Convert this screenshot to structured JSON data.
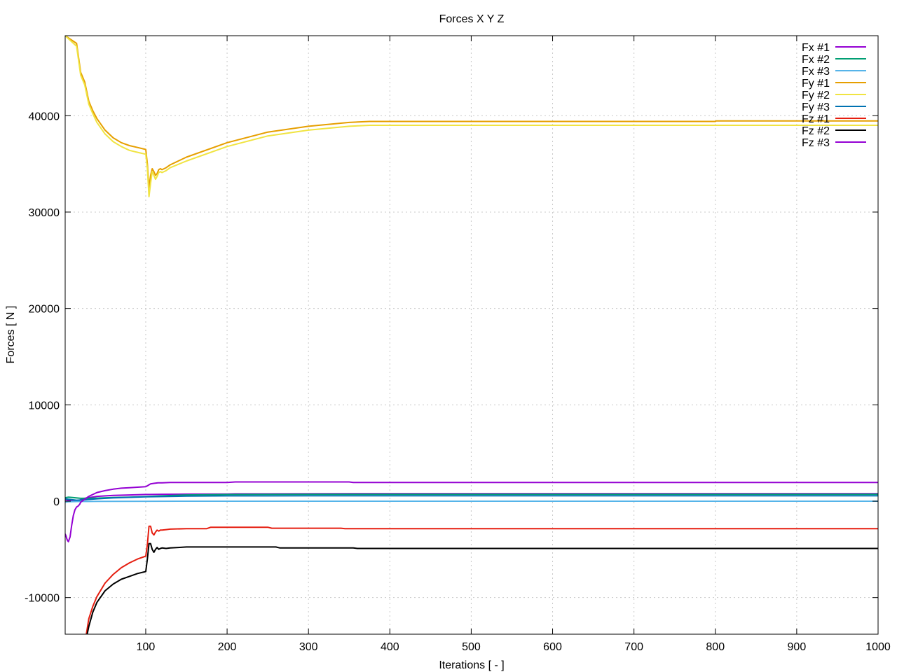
{
  "chart_data": {
    "type": "line",
    "title": "Forces X Y Z",
    "xlabel": "Iterations [ - ]",
    "ylabel": "Forces [ N ]",
    "xlim": [
      1,
      1000
    ],
    "ylim": [
      -13800,
      48300
    ],
    "xticks": [
      100,
      200,
      300,
      400,
      500,
      600,
      700,
      800,
      900,
      1000
    ],
    "yticks": [
      -10000,
      0,
      10000,
      20000,
      30000,
      40000
    ],
    "grid": true,
    "legend_position": "top-right",
    "series": [
      {
        "name": "Fx #1",
        "color": "#9400d3",
        "x": [
          1,
          5,
          15,
          25,
          40,
          60,
          80,
          100,
          105,
          120,
          150,
          200,
          210,
          300,
          358,
          360,
          500,
          800,
          1000
        ],
        "y": [
          150,
          100,
          0,
          300,
          500,
          600,
          650,
          700,
          700,
          720,
          730,
          750,
          760,
          770,
          780,
          780,
          780,
          780,
          780
        ]
      },
      {
        "name": "Fx #2",
        "color": "#009e73",
        "x": [
          1,
          5,
          10,
          20,
          40,
          60,
          80,
          100,
          120,
          150,
          200,
          250,
          300,
          400,
          500,
          800,
          1000
        ],
        "y": [
          350,
          420,
          380,
          300,
          320,
          380,
          420,
          480,
          550,
          650,
          700,
          710,
          720,
          720,
          720,
          720,
          720
        ]
      },
      {
        "name": "Fx #3",
        "color": "#56b4e9",
        "x": [
          1,
          5,
          10,
          20,
          40,
          100,
          200,
          500,
          1000
        ],
        "y": [
          -100,
          -50,
          -40,
          -30,
          -20,
          -10,
          0,
          0,
          0
        ]
      },
      {
        "name": "Fy #1",
        "color": "#e69f00",
        "x": [
          1,
          15,
          20,
          25,
          30,
          35,
          40,
          50,
          60,
          70,
          80,
          90,
          100,
          102,
          104,
          106,
          108,
          110,
          112,
          114,
          116,
          118,
          120,
          125,
          130,
          150,
          200,
          250,
          300,
          350,
          375,
          380,
          500,
          700,
          800,
          801,
          1000
        ],
        "y": [
          48300,
          47500,
          44500,
          43500,
          41500,
          40500,
          39700,
          38500,
          37700,
          37200,
          36900,
          36700,
          36500,
          35000,
          32500,
          33800,
          34500,
          34200,
          33800,
          34000,
          34400,
          34500,
          34400,
          34600,
          34900,
          35700,
          37200,
          38300,
          38900,
          39300,
          39400,
          39400,
          39400,
          39400,
          39400,
          39450,
          39450
        ]
      },
      {
        "name": "Fy #2",
        "color": "#f0e442",
        "x": [
          1,
          15,
          20,
          25,
          30,
          35,
          40,
          50,
          60,
          70,
          80,
          90,
          100,
          102,
          104,
          106,
          108,
          110,
          112,
          114,
          116,
          118,
          120,
          125,
          130,
          150,
          200,
          250,
          300,
          350,
          375,
          380,
          500,
          800,
          1000
        ],
        "y": [
          48300,
          47200,
          44200,
          43200,
          41200,
          40200,
          39300,
          38100,
          37300,
          36800,
          36400,
          36200,
          36000,
          34500,
          31600,
          33000,
          34200,
          33800,
          33400,
          33700,
          34100,
          34200,
          34100,
          34300,
          34600,
          35300,
          36800,
          37900,
          38500,
          38900,
          39000,
          39000,
          39000,
          39000,
          39000
        ]
      },
      {
        "name": "Fy #3",
        "color": "#0072b2",
        "x": [
          1,
          5,
          15,
          25,
          40,
          60,
          80,
          100,
          150,
          200,
          300,
          500,
          800,
          1000
        ],
        "y": [
          250,
          200,
          100,
          150,
          250,
          350,
          400,
          450,
          520,
          550,
          560,
          560,
          560,
          560
        ]
      },
      {
        "name": "Fz #1",
        "color": "#e51e10",
        "x": [
          27,
          30,
          35,
          40,
          50,
          60,
          70,
          80,
          90,
          100,
          102,
          104,
          106,
          108,
          110,
          112,
          114,
          116,
          118,
          120,
          125,
          130,
          150,
          175,
          180,
          200,
          250,
          255,
          300,
          340,
          345,
          400,
          500,
          800,
          1000
        ],
        "y": [
          -13800,
          -12200,
          -10900,
          -9900,
          -8500,
          -7600,
          -6900,
          -6400,
          -6000,
          -5700,
          -4500,
          -2600,
          -2600,
          -3300,
          -3500,
          -3200,
          -3000,
          -3100,
          -3000,
          -3000,
          -2950,
          -2900,
          -2850,
          -2850,
          -2700,
          -2700,
          -2700,
          -2800,
          -2800,
          -2800,
          -2850,
          -2850,
          -2850,
          -2850,
          -2850
        ]
      },
      {
        "name": "Fz #2",
        "color": "#000000",
        "x": [
          28,
          30,
          35,
          40,
          50,
          60,
          70,
          80,
          90,
          100,
          102,
          104,
          106,
          108,
          110,
          112,
          114,
          116,
          118,
          120,
          125,
          130,
          140,
          150,
          200,
          260,
          265,
          300,
          355,
          360,
          500,
          800,
          1000
        ],
        "y": [
          -13800,
          -13000,
          -11500,
          -10500,
          -9300,
          -8600,
          -8100,
          -7800,
          -7500,
          -7300,
          -6000,
          -4400,
          -4400,
          -5000,
          -5300,
          -5000,
          -4800,
          -5000,
          -4900,
          -4850,
          -4900,
          -4850,
          -4800,
          -4750,
          -4750,
          -4750,
          -4850,
          -4850,
          -4850,
          -4900,
          -4900,
          -4900,
          -4900
        ]
      },
      {
        "name": "Fz #3",
        "color": "#9400d3",
        "x": [
          1,
          2,
          3,
          4,
          5,
          7,
          9,
          11,
          13,
          15,
          17,
          19,
          20,
          25,
          30,
          40,
          50,
          60,
          70,
          80,
          90,
          100,
          102,
          104,
          106,
          110,
          115,
          120,
          130,
          200,
          210,
          300,
          350,
          355,
          400,
          500,
          800,
          1000
        ],
        "y": [
          -3400,
          -3600,
          -3900,
          -4100,
          -4200,
          -3700,
          -2500,
          -1500,
          -900,
          -600,
          -500,
          -300,
          -100,
          200,
          500,
          900,
          1100,
          1250,
          1350,
          1400,
          1450,
          1500,
          1600,
          1700,
          1800,
          1850,
          1900,
          1900,
          1950,
          1950,
          2000,
          2000,
          2000,
          1950,
          1950,
          1950,
          1950,
          1950
        ]
      }
    ]
  }
}
